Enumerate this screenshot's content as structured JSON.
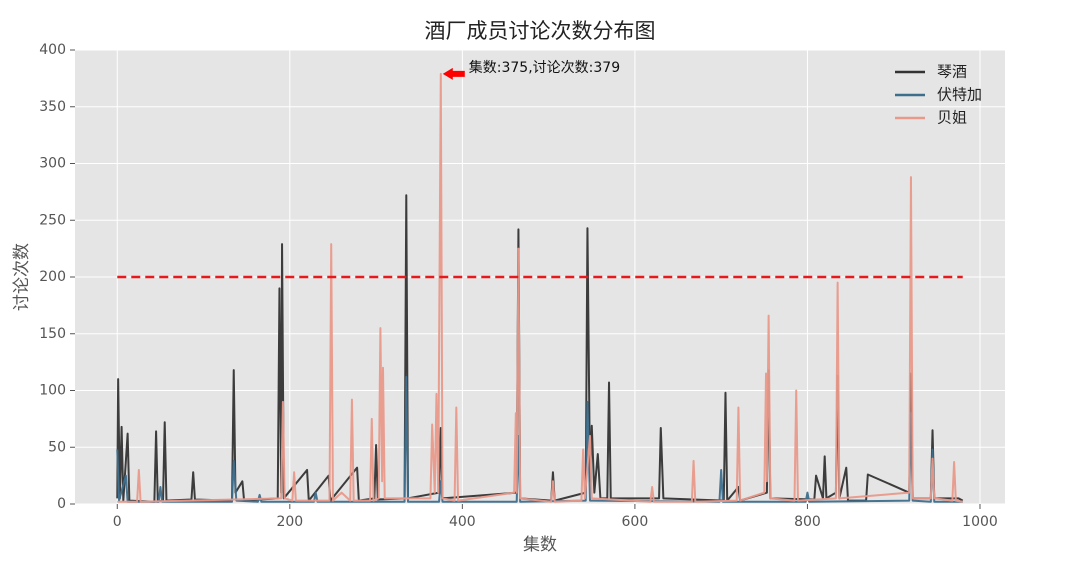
{
  "chart_data": {
    "type": "line",
    "title": "酒厂成员讨论次数分布图",
    "xlabel": "集数",
    "ylabel": "讨论次数",
    "xlim": [
      -49,
      1029
    ],
    "ylim": [
      0,
      400
    ],
    "xticks": [
      0,
      200,
      400,
      600,
      800,
      1000
    ],
    "yticks": [
      0,
      50,
      100,
      150,
      200,
      250,
      300,
      350,
      400
    ],
    "grid": true,
    "legend": "upper right",
    "hline": {
      "y": 200,
      "xmin": 0,
      "xmax": 980,
      "color": "#e8191c"
    },
    "annotation": {
      "text": "集数:375,讨论次数:379",
      "xy": [
        375,
        379
      ],
      "color": "#ff0000"
    },
    "series": [
      {
        "name": "琴酒",
        "color": "#333333",
        "x": [
          0,
          1,
          3,
          5,
          7,
          12,
          14,
          43,
          45,
          47,
          53,
          55,
          57,
          86,
          88,
          90,
          133,
          135,
          137,
          145,
          147,
          186,
          188,
          190,
          191,
          193,
          220,
          222,
          245,
          247,
          278,
          280,
          298,
          300,
          302,
          333,
          335,
          337,
          373,
          375,
          377,
          463,
          465,
          467,
          503,
          505,
          507,
          543,
          545,
          548,
          550,
          553,
          557,
          560,
          568,
          570,
          572,
          628,
          630,
          633,
          703,
          705,
          707,
          720,
          722,
          753,
          755,
          757,
          808,
          810,
          818,
          820,
          822,
          833,
          835,
          837,
          845,
          847,
          868,
          870,
          918,
          920,
          922,
          943,
          945,
          947,
          975,
          980
        ],
        "values": [
          5,
          110,
          5,
          68,
          3,
          62,
          3,
          2,
          64,
          2,
          3,
          72,
          3,
          4,
          28,
          4,
          3,
          118,
          10,
          20,
          3,
          5,
          190,
          10,
          229,
          5,
          30,
          3,
          25,
          3,
          32,
          3,
          5,
          52,
          4,
          5,
          272,
          5,
          10,
          67,
          5,
          10,
          242,
          5,
          3,
          28,
          3,
          10,
          243,
          20,
          69,
          10,
          44,
          5,
          5,
          107,
          5,
          5,
          67,
          5,
          3,
          98,
          3,
          15,
          3,
          10,
          118,
          5,
          4,
          25,
          5,
          42,
          5,
          10,
          113,
          5,
          32,
          3,
          3,
          26,
          10,
          115,
          5,
          5,
          65,
          5,
          5,
          3
        ]
      },
      {
        "name": "伏特加",
        "color": "#3d6e8c",
        "x": [
          0,
          2,
          10,
          12,
          48,
          50,
          52,
          133,
          135,
          138,
          163,
          165,
          167,
          228,
          230,
          232,
          333,
          335,
          337,
          373,
          375,
          377,
          463,
          465,
          467,
          543,
          545,
          548,
          698,
          700,
          702,
          798,
          800,
          802,
          918,
          920,
          922,
          943,
          945,
          947,
          980
        ],
        "values": [
          48,
          3,
          25,
          2,
          2,
          15,
          2,
          2,
          38,
          3,
          2,
          8,
          2,
          2,
          10,
          2,
          2,
          112,
          2,
          2,
          20,
          2,
          2,
          60,
          2,
          3,
          90,
          3,
          2,
          30,
          2,
          2,
          10,
          2,
          3,
          80,
          3,
          2,
          48,
          2,
          2
        ]
      },
      {
        "name": "贝姐",
        "color": "#e8998a",
        "x": [
          0,
          23,
          25,
          27,
          190,
          192,
          194,
          203,
          205,
          207,
          246,
          248,
          250,
          260,
          270,
          272,
          274,
          293,
          295,
          297,
          303,
          305,
          307,
          308,
          310,
          363,
          365,
          368,
          370,
          372,
          375,
          377,
          391,
          393,
          395,
          460,
          462,
          463,
          465,
          467,
          503,
          505,
          507,
          538,
          540,
          542,
          548,
          550,
          618,
          620,
          622,
          666,
          668,
          670,
          718,
          720,
          722,
          750,
          752,
          753,
          755,
          757,
          785,
          787,
          789,
          833,
          835,
          837,
          918,
          920,
          922,
          943,
          945,
          947,
          968,
          970,
          972,
          980
        ],
        "values": [
          2,
          2,
          30,
          2,
          5,
          90,
          5,
          3,
          28,
          3,
          3,
          229,
          3,
          10,
          3,
          92,
          3,
          3,
          75,
          3,
          5,
          155,
          20,
          120,
          5,
          5,
          70,
          10,
          97,
          10,
          379,
          5,
          3,
          85,
          3,
          10,
          80,
          10,
          225,
          5,
          2,
          20,
          2,
          3,
          48,
          5,
          60,
          5,
          2,
          15,
          2,
          2,
          38,
          2,
          3,
          85,
          3,
          10,
          115,
          20,
          166,
          5,
          3,
          100,
          3,
          5,
          195,
          5,
          10,
          288,
          5,
          5,
          40,
          5,
          3,
          37,
          3,
          2
        ]
      }
    ]
  }
}
